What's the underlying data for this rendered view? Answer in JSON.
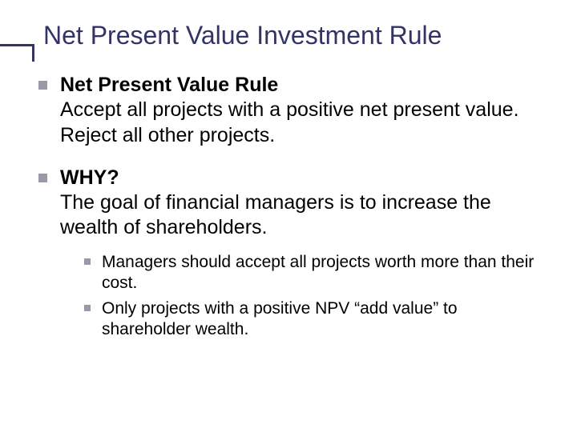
{
  "slide": {
    "title": "Net Present Value Investment Rule",
    "title_color": "#333366",
    "title_fontsize": 32,
    "accent_color": "#333366",
    "bullet_color": "#9999a8",
    "body_color": "#000000",
    "background_color": "#ffffff"
  },
  "points": [
    {
      "heading": "Net Present Value Rule",
      "body": "Accept all projects with a positive net present value.  Reject all other projects."
    },
    {
      "heading": "WHY?",
      "body": "The goal of financial managers is to increase the wealth of shareholders.",
      "sub": [
        "Managers should accept all projects worth more than their cost.",
        "Only projects with a positive NPV “add value” to shareholder wealth."
      ]
    }
  ]
}
